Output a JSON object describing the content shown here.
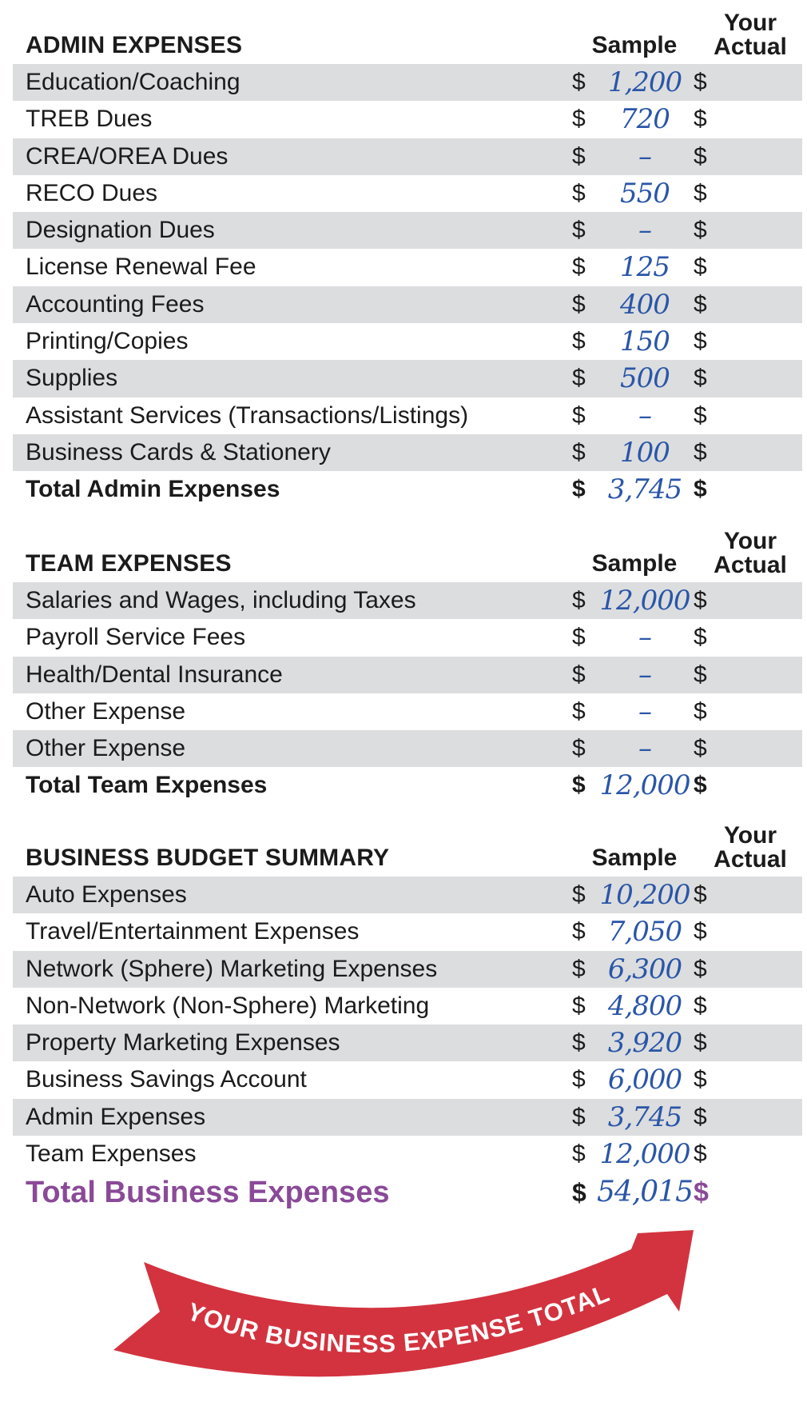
{
  "colors": {
    "shade": "#dcdddf",
    "handwriting": "#2a56a7",
    "accent_purple": "#8a4a98",
    "banner_red": "#d2333f"
  },
  "admin": {
    "title": "ADMIN EXPENSES",
    "sample_header": "Sample",
    "actual_header_1": "Your",
    "actual_header_2": "Actual",
    "rows": [
      {
        "label": "Education/Coaching",
        "value": "1,200"
      },
      {
        "label": "TREB Dues",
        "value": "720"
      },
      {
        "label": "CREA/OREA Dues",
        "value": "–"
      },
      {
        "label": "RECO Dues",
        "value": "550"
      },
      {
        "label": "Designation Dues",
        "value": "–"
      },
      {
        "label": "License Renewal Fee",
        "value": "125"
      },
      {
        "label": "Accounting Fees",
        "value": "400"
      },
      {
        "label": "Printing/Copies",
        "value": "150"
      },
      {
        "label": "Supplies",
        "value": "500"
      },
      {
        "label": "Assistant Services (Transactions/Listings)",
        "value": "–"
      },
      {
        "label": "Business Cards & Stationery",
        "value": "100"
      }
    ],
    "total_label": "Total Admin Expenses",
    "total_value": "3,745"
  },
  "team": {
    "title": "TEAM EXPENSES",
    "sample_header": "Sample",
    "actual_header_1": "Your",
    "actual_header_2": "Actual",
    "rows": [
      {
        "label": "Salaries and Wages, including Taxes",
        "value": "12,000"
      },
      {
        "label": "Payroll Service Fees",
        "value": "–"
      },
      {
        "label": "Health/Dental Insurance",
        "value": "–"
      },
      {
        "label": "Other Expense",
        "value": "–"
      },
      {
        "label": "Other Expense",
        "value": "–"
      }
    ],
    "total_label": "Total Team Expenses",
    "total_value": "12,000"
  },
  "summary": {
    "title": "BUSINESS BUDGET SUMMARY",
    "sample_header": "Sample",
    "actual_header_1": "Your",
    "actual_header_2": "Actual",
    "rows": [
      {
        "label": "Auto Expenses",
        "value": "10,200"
      },
      {
        "label": "Travel/Entertainment Expenses",
        "value": "7,050"
      },
      {
        "label": "Network (Sphere) Marketing Expenses",
        "value": "6,300"
      },
      {
        "label": "Non-Network (Non-Sphere) Marketing",
        "value": "4,800"
      },
      {
        "label": "Property Marketing Expenses",
        "value": "3,920"
      },
      {
        "label": "Business Savings Account",
        "value": "6,000"
      },
      {
        "label": "Admin Expenses",
        "value": "3,745"
      },
      {
        "label": "Team Expenses",
        "value": "12,000"
      }
    ],
    "total_label": "Total Business Expenses",
    "total_value": "54,015"
  },
  "currency_symbol": "$",
  "banner_text": "YOUR BUSINESS EXPENSE TOTAL"
}
